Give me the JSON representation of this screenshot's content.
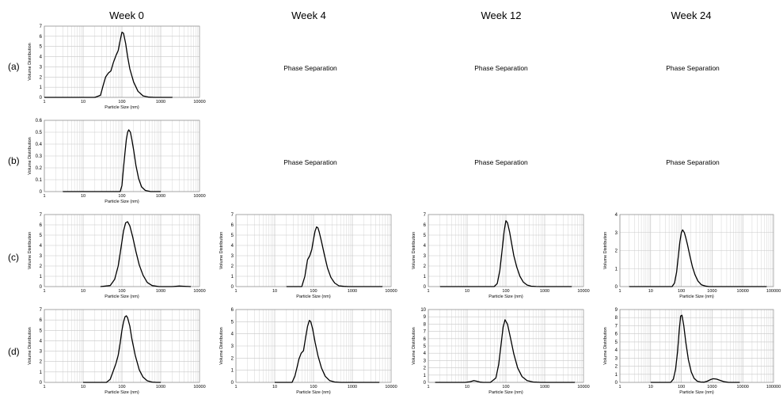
{
  "columns": [
    "Week 0",
    "Week 4",
    "Week 12",
    "Week 24"
  ],
  "rows": [
    "(a)",
    "(b)",
    "(c)",
    "(d)"
  ],
  "phase_separation_text": "Phase Separation",
  "axis_text": {
    "ylabel": "Volume Distribution",
    "xlabel": "Particle Size (nm)"
  },
  "chart_data": [
    {
      "id": "a-w0",
      "type": "line",
      "xscale": "log",
      "xlim": [
        1,
        10000
      ],
      "ylim": [
        0,
        7
      ],
      "yticks": [
        0,
        1,
        2,
        3,
        4,
        5,
        6,
        7
      ],
      "xlabel": "Particle Size (nm)",
      "ylabel": "Volume Distribution",
      "series": [
        {
          "x": [
            1,
            20,
            28,
            33,
            38,
            45,
            52,
            60,
            70,
            80,
            90,
            100,
            110,
            125,
            140,
            160,
            200,
            260,
            350,
            500,
            700,
            2000
          ],
          "y": [
            0,
            0,
            0.2,
            1.2,
            2.0,
            2.4,
            2.6,
            3.4,
            4.1,
            4.6,
            5.6,
            6.4,
            6.3,
            5.3,
            4.0,
            2.8,
            1.5,
            0.6,
            0.15,
            0.02,
            0,
            0
          ]
        }
      ]
    },
    {
      "id": "b-w0",
      "type": "line",
      "xscale": "log",
      "xlim": [
        1,
        10000
      ],
      "ylim": [
        0,
        0.6
      ],
      "yticks": [
        0,
        0.1,
        0.2,
        0.3,
        0.4,
        0.5,
        0.6
      ],
      "xlabel": "Particle Size (nm)",
      "ylabel": "Volume Distribution",
      "series": [
        {
          "x": [
            3,
            90,
            100,
            110,
            120,
            130,
            140,
            150,
            165,
            180,
            200,
            230,
            270,
            320,
            400,
            550,
            800,
            1000
          ],
          "y": [
            0,
            0,
            0.05,
            0.2,
            0.33,
            0.44,
            0.5,
            0.52,
            0.5,
            0.44,
            0.35,
            0.22,
            0.11,
            0.04,
            0.01,
            0,
            0,
            0
          ]
        }
      ]
    },
    {
      "id": "c-w0",
      "type": "line",
      "xscale": "log",
      "xlim": [
        1,
        10000
      ],
      "ylim": [
        0,
        7
      ],
      "yticks": [
        0,
        1,
        2,
        3,
        4,
        5,
        6,
        7
      ],
      "xlabel": "Particle Size (nm)",
      "ylabel": "Volume Distribution",
      "series": [
        {
          "x": [
            28,
            50,
            65,
            80,
            95,
            110,
            125,
            140,
            160,
            190,
            230,
            280,
            350,
            450,
            600,
            900,
            2000,
            3000,
            4000,
            6000
          ],
          "y": [
            0,
            0.1,
            0.7,
            2.0,
            3.8,
            5.4,
            6.2,
            6.3,
            5.9,
            4.8,
            3.4,
            2.1,
            1.1,
            0.4,
            0.1,
            0,
            0,
            0.05,
            0.03,
            0
          ]
        }
      ]
    },
    {
      "id": "d-w0",
      "type": "line",
      "xscale": "log",
      "xlim": [
        1,
        10000
      ],
      "ylim": [
        0,
        7
      ],
      "yticks": [
        0,
        1,
        2,
        3,
        4,
        5,
        6,
        7
      ],
      "xlabel": "Particle Size (nm)",
      "ylabel": "Volume Distribution",
      "series": [
        {
          "x": [
            10,
            40,
            50,
            60,
            70,
            80,
            90,
            100,
            110,
            120,
            130,
            140,
            160,
            180,
            220,
            280,
            350,
            450,
            600,
            800,
            1000
          ],
          "y": [
            0,
            0,
            0.3,
            1.1,
            1.8,
            2.6,
            3.8,
            5.0,
            5.8,
            6.3,
            6.4,
            6.2,
            5.4,
            4.2,
            2.6,
            1.2,
            0.5,
            0.15,
            0.03,
            0,
            0
          ]
        }
      ]
    },
    {
      "id": "c-w4",
      "type": "line",
      "xscale": "log",
      "xlim": [
        1,
        10000
      ],
      "ylim": [
        0,
        7
      ],
      "yticks": [
        0,
        1,
        2,
        3,
        4,
        5,
        6,
        7
      ],
      "xlabel": "Particle Size (nm)",
      "ylabel": "Volume Distribution",
      "series": [
        {
          "x": [
            20,
            50,
            60,
            70,
            80,
            90,
            100,
            110,
            120,
            130,
            140,
            160,
            190,
            230,
            280,
            350,
            450,
            600,
            800,
            1000,
            6000
          ],
          "y": [
            0,
            0,
            1.0,
            2.6,
            3.0,
            3.6,
            4.6,
            5.4,
            5.8,
            5.7,
            5.3,
            4.4,
            3.1,
            1.8,
            0.9,
            0.35,
            0.08,
            0.02,
            0,
            0,
            0
          ]
        }
      ]
    },
    {
      "id": "d-w4",
      "type": "line",
      "xscale": "log",
      "xlim": [
        1,
        10000
      ],
      "ylim": [
        0,
        6
      ],
      "yticks": [
        0,
        1,
        2,
        3,
        4,
        5,
        6
      ],
      "xlabel": "Particle Size (nm)",
      "ylabel": "Volume Distribution",
      "series": [
        {
          "x": [
            10,
            28,
            33,
            38,
            42,
            48,
            55,
            62,
            70,
            78,
            85,
            95,
            110,
            130,
            160,
            200,
            260,
            350,
            500,
            700,
            1000,
            5000
          ],
          "y": [
            0,
            0,
            0.5,
            1.3,
            1.9,
            2.4,
            2.6,
            3.6,
            4.6,
            5.1,
            5.0,
            4.4,
            3.3,
            2.2,
            1.2,
            0.5,
            0.15,
            0.03,
            0,
            0,
            0,
            0
          ]
        }
      ]
    },
    {
      "id": "c-w12",
      "type": "line",
      "xscale": "log",
      "xlim": [
        1,
        10000
      ],
      "ylim": [
        0,
        7
      ],
      "yticks": [
        0,
        1,
        2,
        3,
        4,
        5,
        6,
        7
      ],
      "xlabel": "Particle Size (nm)",
      "ylabel": "Volume Distribution",
      "series": [
        {
          "x": [
            2,
            50,
            60,
            70,
            80,
            90,
            100,
            110,
            125,
            140,
            160,
            190,
            230,
            280,
            350,
            450,
            600,
            800,
            1000,
            5000
          ],
          "y": [
            0,
            0,
            0.3,
            1.6,
            3.6,
            5.4,
            6.4,
            6.2,
            5.3,
            4.2,
            3.0,
            1.9,
            1.0,
            0.45,
            0.15,
            0.04,
            0.01,
            0,
            0,
            0
          ]
        }
      ]
    },
    {
      "id": "d-w12",
      "type": "line",
      "xscale": "log",
      "xlim": [
        1,
        10000
      ],
      "ylim": [
        0,
        10
      ],
      "yticks": [
        0,
        1,
        2,
        3,
        4,
        5,
        6,
        7,
        8,
        9,
        10
      ],
      "xlabel": "Particle Size (nm)",
      "ylabel": "Volume Distribution",
      "series": [
        {
          "x": [
            1.5,
            9,
            12,
            15,
            18,
            22,
            26,
            40,
            55,
            65,
            75,
            85,
            95,
            110,
            130,
            160,
            200,
            260,
            350,
            500,
            800,
            6000
          ],
          "y": [
            0,
            0,
            0.1,
            0.25,
            0.15,
            0.03,
            0,
            0,
            0.6,
            2.4,
            5.2,
            7.6,
            8.6,
            8.0,
            6.2,
            3.9,
            2.0,
            0.8,
            0.25,
            0.05,
            0,
            0
          ]
        }
      ]
    },
    {
      "id": "c-w24",
      "type": "line",
      "xscale": "log",
      "xlim": [
        1,
        100000
      ],
      "ylim": [
        0,
        4
      ],
      "yticks": [
        0,
        1,
        2,
        3,
        4
      ],
      "xlabel": "Particle Size (nm)",
      "ylabel": "Volume Distribution",
      "series": [
        {
          "x": [
            2,
            50,
            60,
            70,
            80,
            90,
            100,
            110,
            125,
            140,
            160,
            190,
            230,
            280,
            350,
            450,
            600,
            800,
            1000,
            5000,
            60000
          ],
          "y": [
            0,
            0,
            0.2,
            0.8,
            1.7,
            2.5,
            3.0,
            3.15,
            3.0,
            2.7,
            2.3,
            1.7,
            1.1,
            0.65,
            0.3,
            0.1,
            0.03,
            0,
            0,
            0,
            0
          ]
        }
      ]
    },
    {
      "id": "d-w24",
      "type": "line",
      "xscale": "log",
      "xlim": [
        1,
        100000
      ],
      "ylim": [
        0,
        9
      ],
      "yticks": [
        0,
        1,
        2,
        3,
        4,
        5,
        6,
        7,
        8,
        9
      ],
      "xlabel": "Particle Size (nm)",
      "ylabel": "Volume Distribution",
      "series": [
        {
          "x": [
            10,
            45,
            55,
            65,
            75,
            85,
            95,
            105,
            120,
            140,
            170,
            210,
            260,
            330,
            420,
            550,
            700,
            900,
            1100,
            1400,
            1800,
            2500,
            3500,
            8000
          ],
          "y": [
            0,
            0,
            0.4,
            1.6,
            3.8,
            6.4,
            8.2,
            8.3,
            7.0,
            4.9,
            2.8,
            1.3,
            0.5,
            0.15,
            0.05,
            0.03,
            0.15,
            0.35,
            0.45,
            0.4,
            0.25,
            0.08,
            0,
            0
          ]
        }
      ]
    }
  ]
}
